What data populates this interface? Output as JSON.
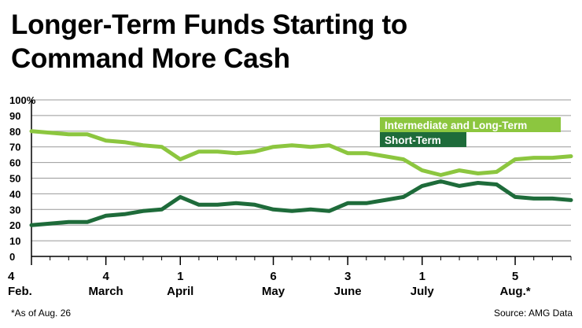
{
  "title": {
    "line1": "Longer-Term Funds Starting to",
    "line2": "Command More Cash"
  },
  "footnote": "*As of Aug. 26",
  "source": "Source: AMG Data",
  "chart_data": {
    "type": "line",
    "y_tick_labels": [
      "0",
      "10",
      "20",
      "30",
      "40",
      "50",
      "60",
      "70",
      "80",
      "90",
      "100%"
    ],
    "ylim": [
      0,
      100
    ],
    "grid": true,
    "legend_placement": "top-right",
    "x_tick_labels": [
      {
        "day": "4",
        "month": "Feb.",
        "week_index": 0
      },
      {
        "day": "4",
        "month": "March",
        "week_index": 4
      },
      {
        "day": "1",
        "month": "April",
        "week_index": 8
      },
      {
        "day": "6",
        "month": "May",
        "week_index": 13
      },
      {
        "day": "3",
        "month": "June",
        "week_index": 17
      },
      {
        "day": "1",
        "month": "July",
        "week_index": 21
      },
      {
        "day": "5",
        "month": "Aug.*",
        "week_index": 26
      }
    ],
    "x": [
      0,
      1,
      2,
      3,
      4,
      5,
      6,
      7,
      8,
      9,
      10,
      11,
      12,
      13,
      14,
      15,
      16,
      17,
      18,
      19,
      20,
      21,
      22,
      23,
      24,
      25,
      26,
      27,
      28,
      29
    ],
    "series": [
      {
        "name": "Intermediate and Long-Term",
        "color": "#8cc63f",
        "values": [
          80,
          79,
          78,
          78,
          74,
          73,
          71,
          70,
          62,
          67,
          67,
          66,
          67,
          70,
          71,
          70,
          71,
          66,
          66,
          64,
          62,
          55,
          52,
          55,
          53,
          54,
          62,
          63,
          63,
          64
        ]
      },
      {
        "name": "Short-Term",
        "color": "#1e6b3a",
        "values": [
          20,
          21,
          22,
          22,
          26,
          27,
          29,
          30,
          38,
          33,
          33,
          34,
          33,
          30,
          29,
          30,
          29,
          34,
          34,
          36,
          38,
          45,
          48,
          45,
          47,
          46,
          38,
          37,
          37,
          36
        ]
      }
    ]
  }
}
